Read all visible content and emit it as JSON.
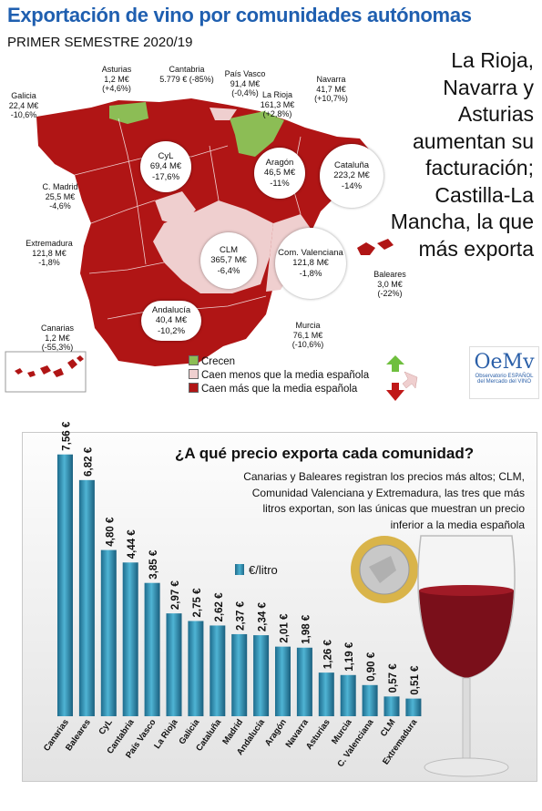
{
  "title": "Exportación de vino por comunidades autónomas",
  "subtitle": "PRIMER SEMESTRE 2020/19",
  "headline": "La Rioja, Navarra y Asturias aumentan su facturación; Castilla-La Mancha, la que más exporta",
  "map": {
    "regions": [
      {
        "name": "Asturias",
        "value": "1,2 M€ (+4,6%)"
      },
      {
        "name": "Cantabria",
        "value": "5.779 € (-85%)"
      },
      {
        "name": "País Vasco",
        "value": "91,4 M€ (-0,4%)"
      },
      {
        "name": "Navarra",
        "value": "41,7 M€",
        "change": "(+10,7%)"
      },
      {
        "name": "La Rioja",
        "value": "161,3 M€",
        "change": "(+2,8%)"
      },
      {
        "name": "Galicia",
        "value": "22,4 M€",
        "change": "-10,6%"
      },
      {
        "name": "CyL",
        "value": "69,4 M€",
        "change": "-17,6%"
      },
      {
        "name": "Aragón",
        "value": "46,5 M€",
        "change": "-11%"
      },
      {
        "name": "Cataluña",
        "value": "223,2 M€",
        "change": "-14%"
      },
      {
        "name": "C. Madrid",
        "value": "25,5 M€",
        "change": "-4,6%"
      },
      {
        "name": "Extremadura",
        "value": "121,8 M€",
        "change": "-1,8%"
      },
      {
        "name": "CLM",
        "value": "365,7 M€",
        "change": "-6,4%"
      },
      {
        "name": "Com. Valenciana",
        "value": "121,8 M€",
        "change": "-1,8%"
      },
      {
        "name": "Baleares",
        "value": "3,0 M€",
        "change": "(-22%)"
      },
      {
        "name": "Andalucía",
        "value": "40,4 M€",
        "change": "-10,2%"
      },
      {
        "name": "Murcia",
        "value": "76,1 M€",
        "change": "(-10,6%)"
      },
      {
        "name": "Canarias",
        "value": "1,2 M€ (-55,3%)"
      }
    ],
    "legend": [
      {
        "label": "Crecen",
        "color": "#8cbd55"
      },
      {
        "label": "Caen menos que la media española",
        "color": "#efcfcf"
      },
      {
        "label": "Caen más que la media española",
        "color": "#b01515"
      }
    ]
  },
  "logo": {
    "mark": "OeMv",
    "line1": "Observatorio ESPAÑOL",
    "line2": "del Mercado del VINO"
  },
  "chart": {
    "title": "¿A qué precio exporta cada comunidad?",
    "description": "Canarias y Baleares registran los precios más altos; CLM, Comunidad Valenciana y Extremadura, las tres que más litros exportan, son las únicas que muestran un precio inferior a la media española",
    "legend_label": "€/litro"
  },
  "chart_data": {
    "type": "bar",
    "categories": [
      "Canarias",
      "Baleares",
      "CyL",
      "Cantabria",
      "País Vasco",
      "La Rioja",
      "Galicia",
      "Cataluña",
      "Madrid",
      "Andalucía",
      "Aragón",
      "Navarra",
      "Asturias",
      "Murcia",
      "C. Valenciana",
      "CLM",
      "Extremadura"
    ],
    "series": [
      {
        "name": "€/litro",
        "values": [
          7.56,
          6.82,
          4.8,
          4.44,
          3.85,
          2.97,
          2.75,
          2.62,
          2.37,
          2.34,
          2.01,
          1.98,
          1.26,
          1.19,
          0.9,
          0.57,
          0.51
        ]
      }
    ],
    "data_labels": [
      "7,56 €",
      "6,82 €",
      "4,80 €",
      "4,44 €",
      "3,85 €",
      "2,97 €",
      "2,75 €",
      "2,62 €",
      "2,37 €",
      "2,34 €",
      "2,01 €",
      "1,98 €",
      "1,26 €",
      "1,19 €",
      "0,90 €",
      "0,57 €",
      "0,51 €"
    ],
    "ylim": [
      0,
      8
    ],
    "color": "#2a86a8",
    "legend_position": "top-center",
    "grid": false
  }
}
